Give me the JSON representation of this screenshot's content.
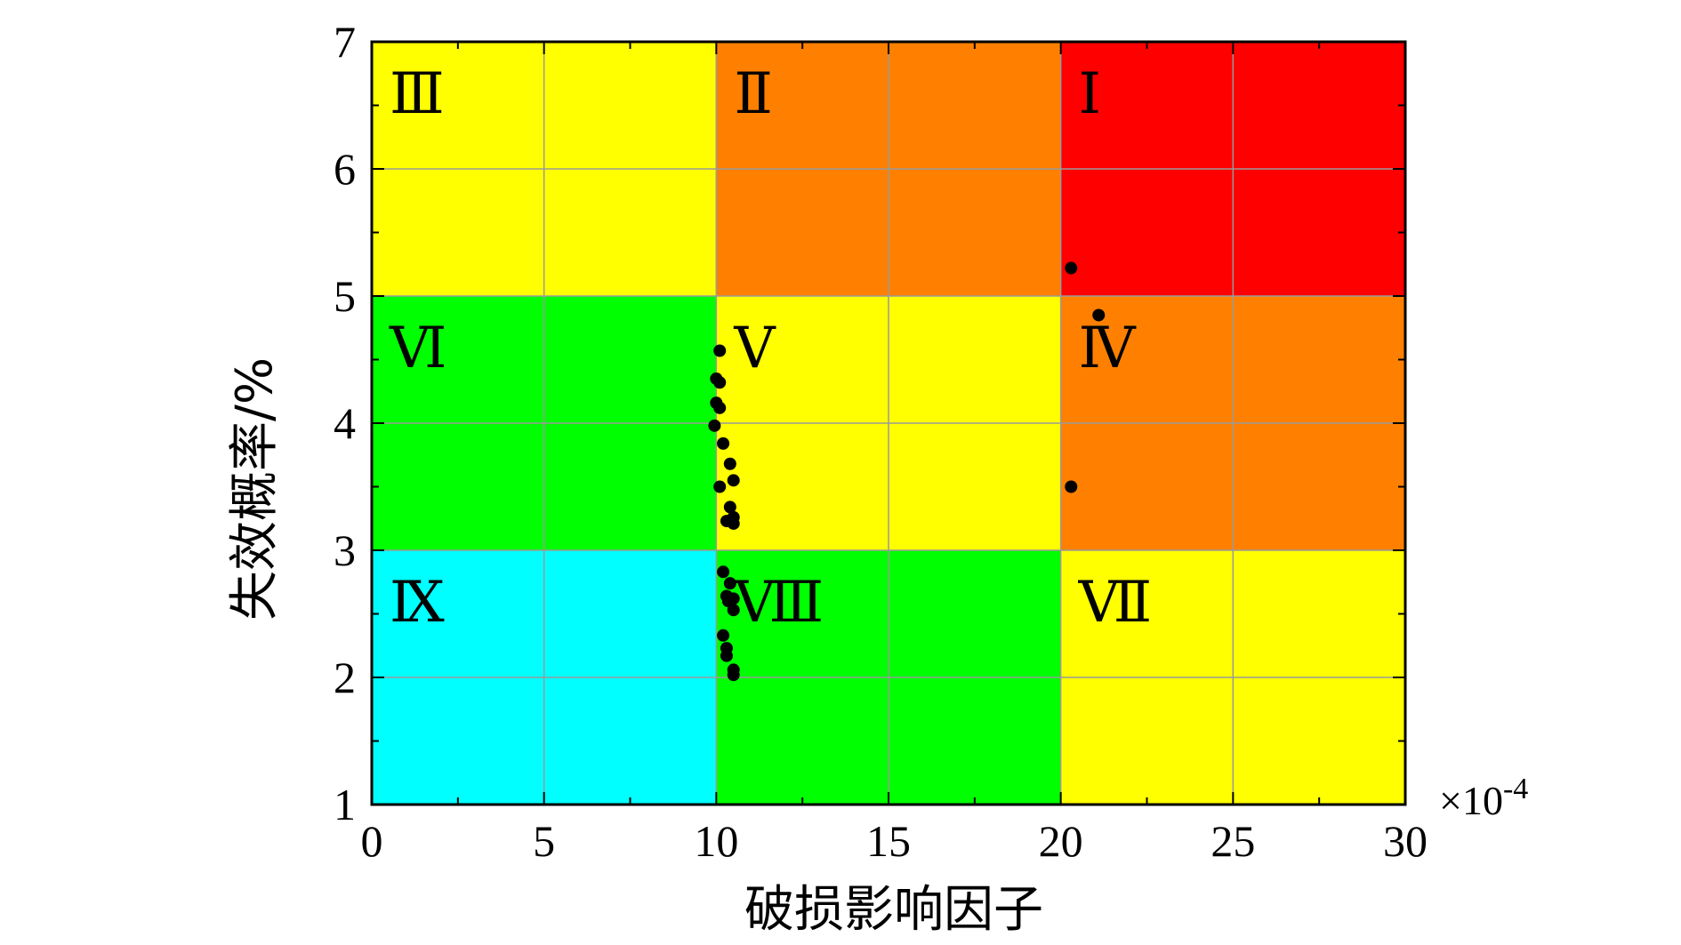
{
  "chart_data": {
    "type": "scatter",
    "xlabel": "破损影响因子",
    "ylabel": "失效概率/%",
    "x_multiplier": "×10",
    "x_multiplier_exp": "-4",
    "xlim": [
      0,
      30
    ],
    "ylim": [
      1,
      7
    ],
    "xticks": [
      0,
      5,
      10,
      15,
      20,
      25,
      30
    ],
    "yticks": [
      1,
      2,
      3,
      4,
      5,
      6,
      7
    ],
    "grid": true,
    "zones": [
      {
        "label": "Ⅰ",
        "x": [
          20,
          30
        ],
        "y": [
          5,
          7
        ],
        "color": "#ff0000"
      },
      {
        "label": "Ⅱ",
        "x": [
          10,
          20
        ],
        "y": [
          5,
          7
        ],
        "color": "#ff8000"
      },
      {
        "label": "Ⅲ",
        "x": [
          0,
          10
        ],
        "y": [
          5,
          7
        ],
        "color": "#ffff00"
      },
      {
        "label": "Ⅳ",
        "x": [
          20,
          30
        ],
        "y": [
          3,
          5
        ],
        "color": "#ff8000"
      },
      {
        "label": "Ⅴ",
        "x": [
          10,
          20
        ],
        "y": [
          3,
          5
        ],
        "color": "#ffff00"
      },
      {
        "label": "Ⅵ",
        "x": [
          0,
          10
        ],
        "y": [
          3,
          5
        ],
        "color": "#00ff00"
      },
      {
        "label": "Ⅶ",
        "x": [
          20,
          30
        ],
        "y": [
          1,
          3
        ],
        "color": "#ffff00"
      },
      {
        "label": "Ⅷ",
        "x": [
          10,
          20
        ],
        "y": [
          1,
          3
        ],
        "color": "#00ff00"
      },
      {
        "label": "Ⅸ",
        "x": [
          0,
          10
        ],
        "y": [
          1,
          3
        ],
        "color": "#00ffff"
      }
    ],
    "points": [
      {
        "x": 20.3,
        "y": 5.22
      },
      {
        "x": 21.1,
        "y": 4.85
      },
      {
        "x": 20.3,
        "y": 3.5
      },
      {
        "x": 10.1,
        "y": 4.57
      },
      {
        "x": 10.0,
        "y": 4.35
      },
      {
        "x": 10.1,
        "y": 4.32
      },
      {
        "x": 10.0,
        "y": 4.16
      },
      {
        "x": 10.1,
        "y": 4.12
      },
      {
        "x": 9.95,
        "y": 3.98
      },
      {
        "x": 10.2,
        "y": 3.84
      },
      {
        "x": 10.4,
        "y": 3.68
      },
      {
        "x": 10.5,
        "y": 3.55
      },
      {
        "x": 10.1,
        "y": 3.5
      },
      {
        "x": 10.4,
        "y": 3.34
      },
      {
        "x": 10.5,
        "y": 3.26
      },
      {
        "x": 10.3,
        "y": 3.23
      },
      {
        "x": 10.5,
        "y": 3.21
      },
      {
        "x": 10.2,
        "y": 2.83
      },
      {
        "x": 10.4,
        "y": 2.74
      },
      {
        "x": 10.3,
        "y": 2.64
      },
      {
        "x": 10.5,
        "y": 2.62
      },
      {
        "x": 10.35,
        "y": 2.6
      },
      {
        "x": 10.5,
        "y": 2.53
      },
      {
        "x": 10.2,
        "y": 2.33
      },
      {
        "x": 10.3,
        "y": 2.23
      },
      {
        "x": 10.3,
        "y": 2.17
      },
      {
        "x": 10.5,
        "y": 2.06
      },
      {
        "x": 10.5,
        "y": 2.02
      }
    ],
    "point_color": "#000000",
    "grid_color": "#9a9a9a"
  }
}
